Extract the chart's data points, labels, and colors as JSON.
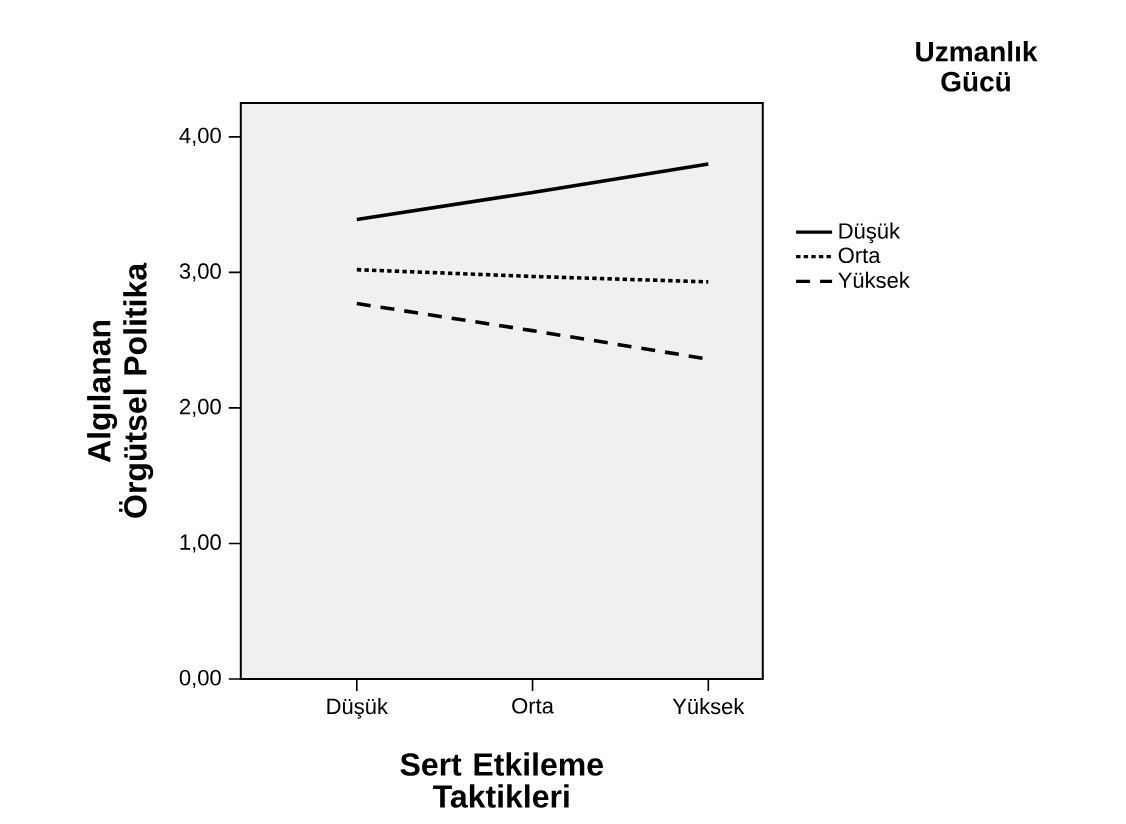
{
  "chart_data": {
    "type": "line",
    "xlabel": "Sert Etkileme Taktikleri",
    "ylabel": "Algılanan Örgütsel Politika",
    "legend_title": "Uzmanlık Gücü",
    "categories": [
      "Düşük",
      "Orta",
      "Yüksek"
    ],
    "series": [
      {
        "name": "Düşük",
        "color": "#000000",
        "line_style": "solid",
        "values": [
          3.39,
          3.59,
          3.8
        ]
      },
      {
        "name": "Orta",
        "color": "#000000",
        "line_style": "dotted",
        "values": [
          3.02,
          2.97,
          2.93
        ]
      },
      {
        "name": "Yüksek",
        "color": "#000000",
        "line_style": "dashed",
        "values": [
          2.77,
          2.57,
          2.36
        ]
      }
    ],
    "ylim": [
      0,
      4.25
    ],
    "yticks": [
      {
        "value": 0,
        "label": "0,00"
      },
      {
        "value": 1,
        "label": "1,00"
      },
      {
        "value": 2,
        "label": "2,00"
      },
      {
        "value": 3,
        "label": "3,00"
      },
      {
        "value": 4,
        "label": "4,00"
      }
    ],
    "legend": "right",
    "marker": "none",
    "grid": false
  }
}
